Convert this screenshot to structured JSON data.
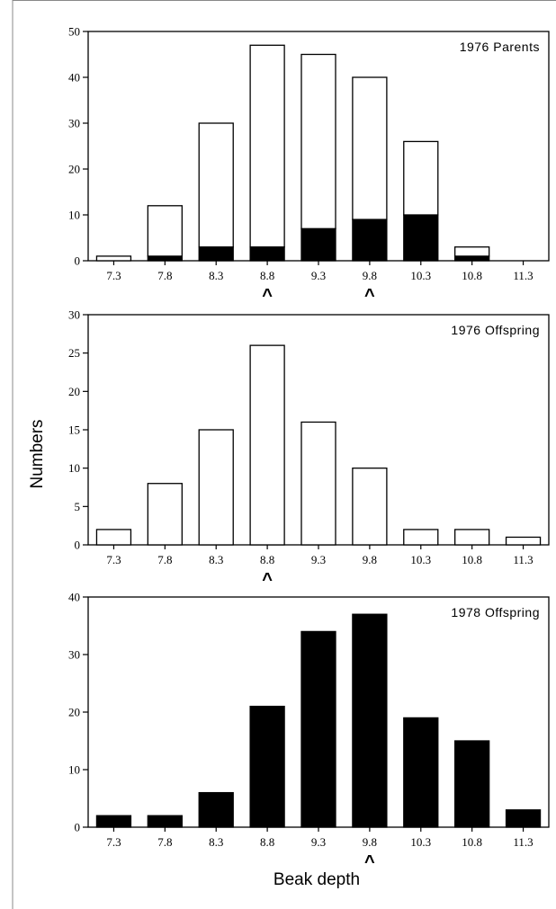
{
  "figure": {
    "ylabel": "Numbers",
    "xlabel": "Beak depth",
    "marker_glyph": "^"
  },
  "chart_data": [
    {
      "type": "bar",
      "title": "1976 Parents",
      "categories": [
        "7.3",
        "7.8",
        "8.3",
        "8.8",
        "9.3",
        "9.8",
        "10.3",
        "10.8",
        "11.3"
      ],
      "ylim": [
        0,
        50
      ],
      "yticks": [
        0,
        10,
        20,
        30,
        40,
        50
      ],
      "stacked": true,
      "series": [
        {
          "values": [
            0,
            1,
            3,
            3,
            7,
            9,
            10,
            1,
            0
          ],
          "color": "#000000"
        },
        {
          "values": [
            1,
            11,
            27,
            44,
            38,
            31,
            16,
            2,
            0
          ],
          "color": "#ffffff"
        }
      ],
      "totals": [
        1,
        12,
        30,
        47,
        45,
        40,
        26,
        3,
        0
      ],
      "markers_at": [
        "8.8",
        "9.8"
      ]
    },
    {
      "type": "bar",
      "title": "1976 Offspring",
      "categories": [
        "7.3",
        "7.8",
        "8.3",
        "8.8",
        "9.3",
        "9.8",
        "10.3",
        "10.8",
        "11.3"
      ],
      "ylim": [
        0,
        30
      ],
      "yticks": [
        0,
        5,
        10,
        15,
        20,
        25,
        30
      ],
      "series": [
        {
          "values": [
            2,
            8,
            15,
            26,
            16,
            10,
            2,
            2,
            1
          ],
          "color": "#ffffff"
        }
      ],
      "markers_at": [
        "8.8"
      ]
    },
    {
      "type": "bar",
      "title": "1978 Offspring",
      "categories": [
        "7.3",
        "7.8",
        "8.3",
        "8.8",
        "9.3",
        "9.8",
        "10.3",
        "10.8",
        "11.3"
      ],
      "ylim": [
        0,
        40
      ],
      "yticks": [
        0,
        10,
        20,
        30,
        40
      ],
      "series": [
        {
          "values": [
            2,
            2,
            6,
            21,
            34,
            37,
            19,
            15,
            3
          ],
          "color": "#000000"
        }
      ],
      "markers_at": [
        "9.8"
      ]
    }
  ]
}
